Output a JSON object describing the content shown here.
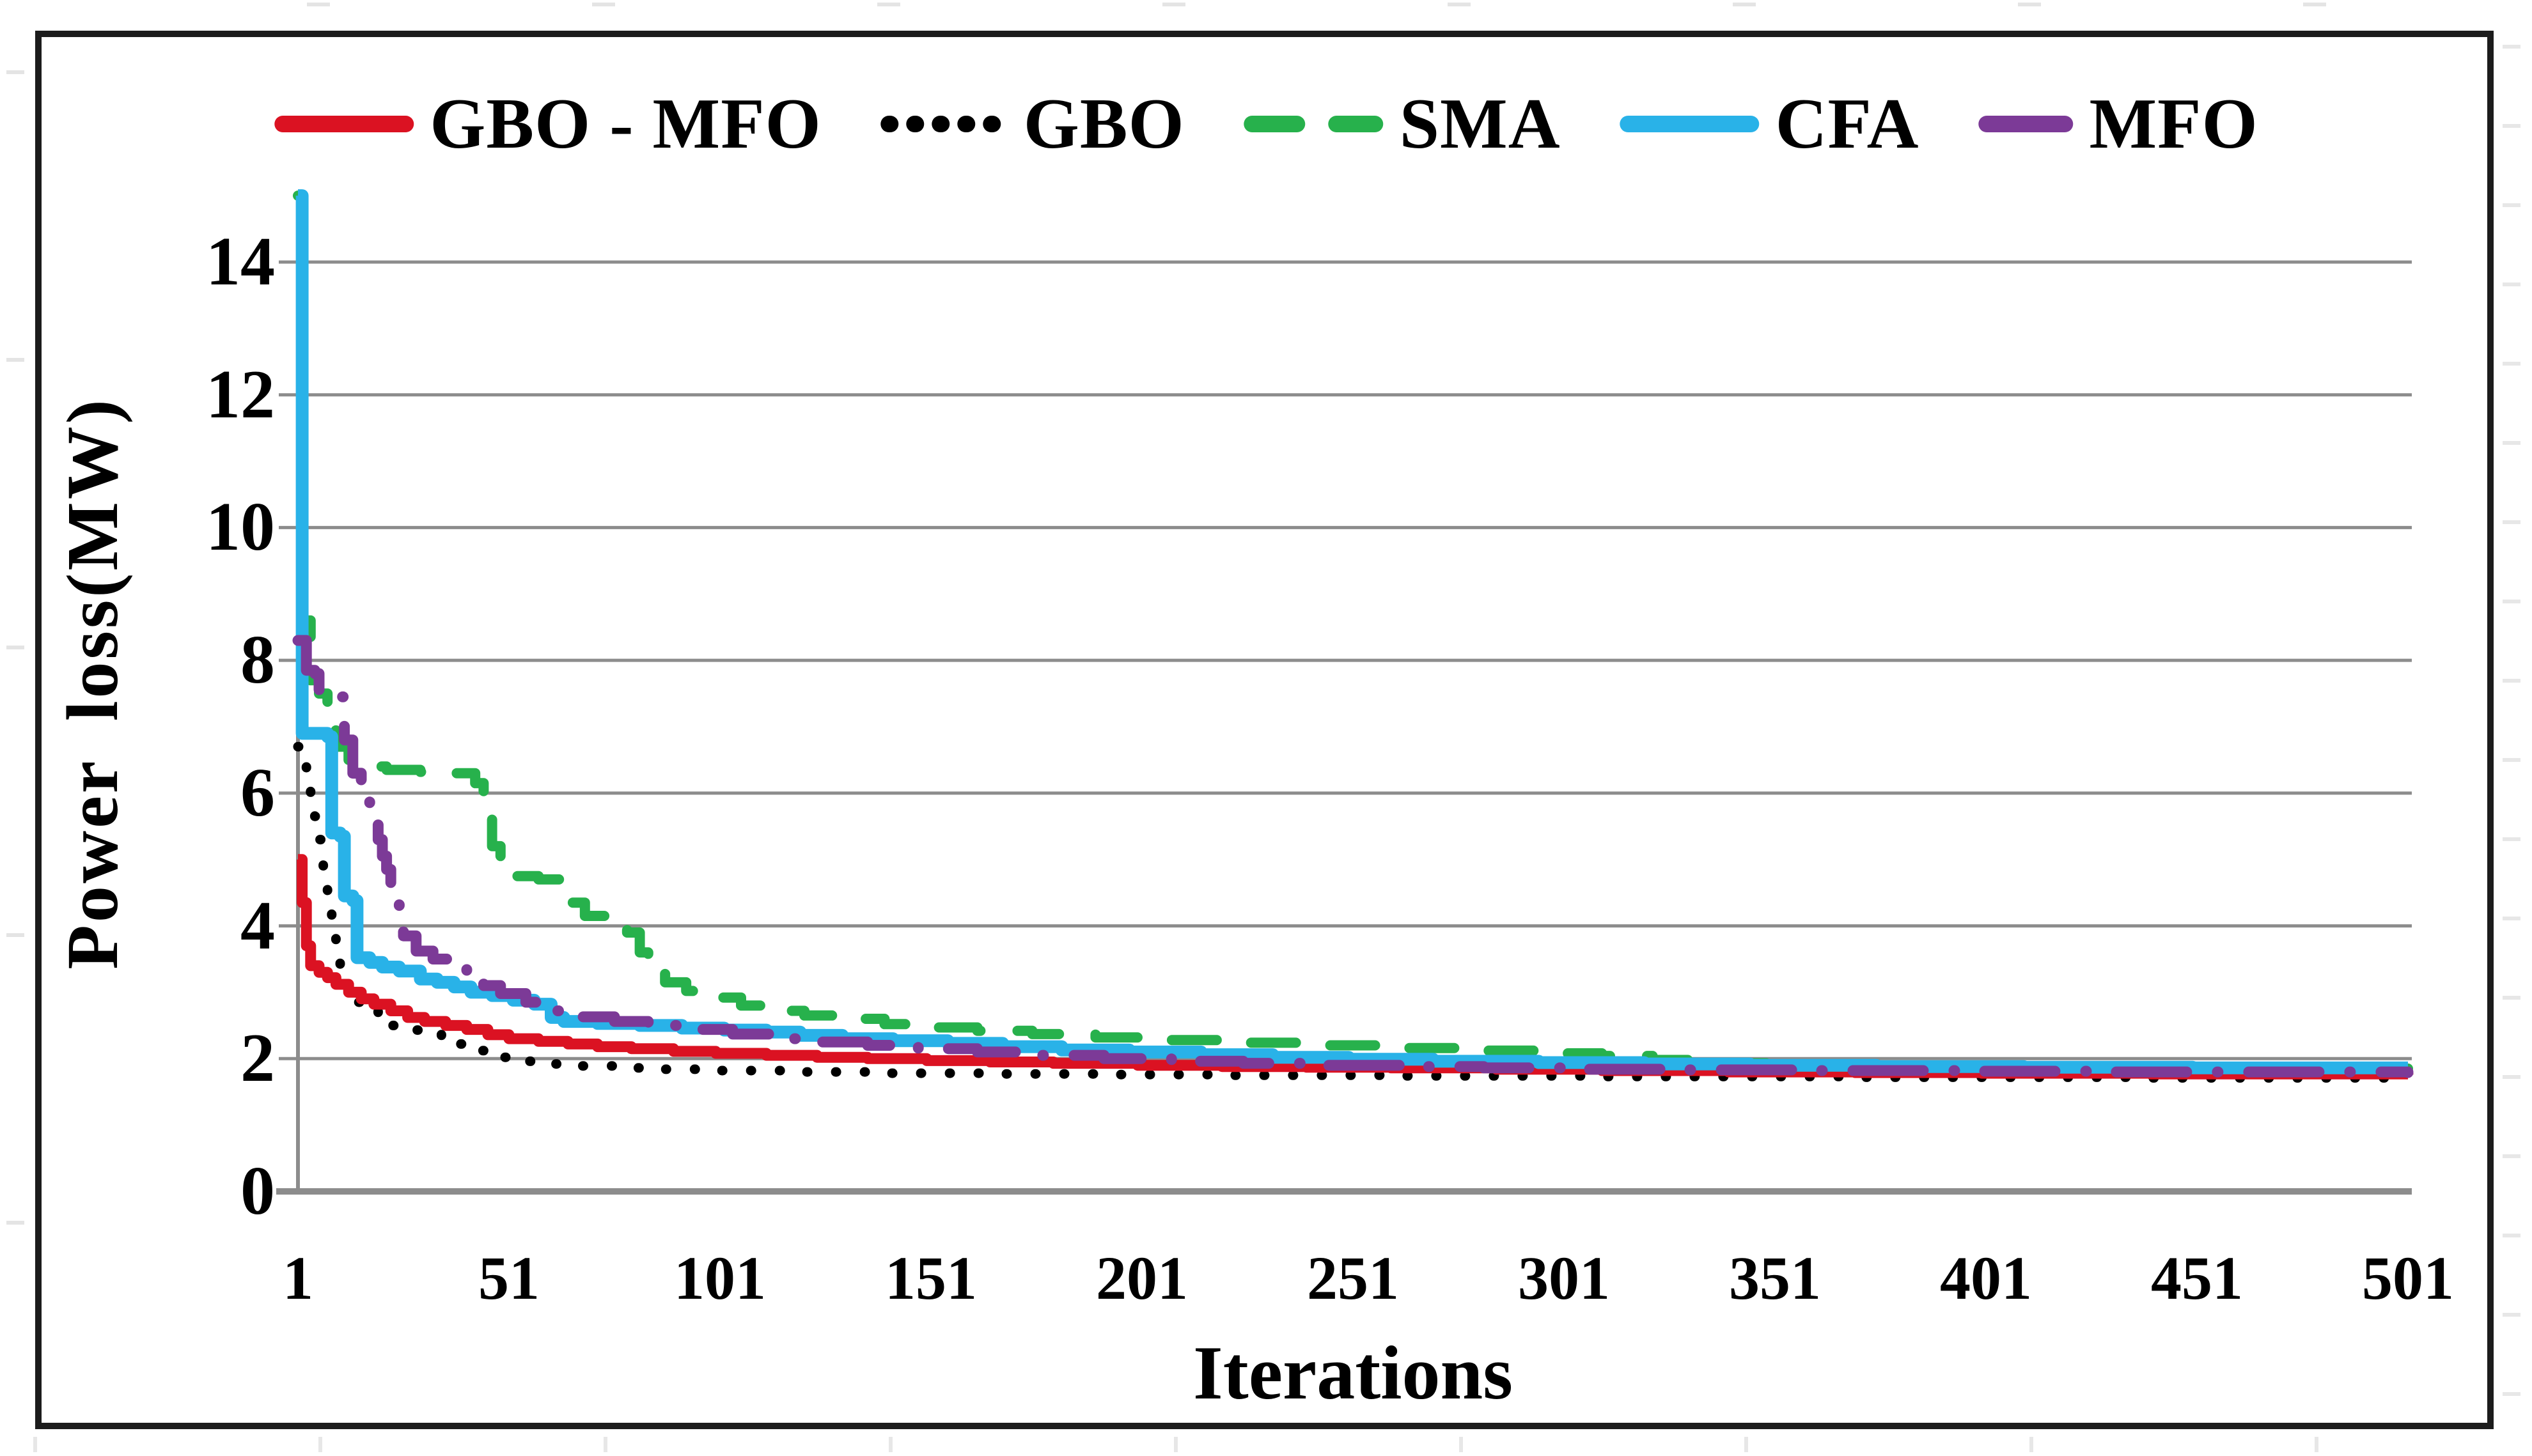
{
  "figure": {
    "border_color": "#1c1c1c",
    "background": "#ffffff",
    "grid_color": "#8c8c8c",
    "axis_color": "#8c8c8c",
    "text_color": "#000000"
  },
  "chart_data": {
    "type": "line",
    "title": "",
    "xlabel": "Iterations",
    "ylabel": "Power loss(MW)",
    "x_range": [
      1,
      501
    ],
    "ylim": [
      0,
      15.1
    ],
    "xticks": [
      1,
      51,
      101,
      151,
      201,
      251,
      301,
      351,
      401,
      451,
      501
    ],
    "yticks": [
      0,
      2,
      4,
      6,
      8,
      10,
      12,
      14
    ],
    "grid": "horizontal",
    "legend_position": "top-center",
    "series": [
      {
        "name": "GBO - MFO",
        "color": "#db1222",
        "style": "solid",
        "width": 17,
        "z": 2,
        "points": [
          [
            1,
            5.0
          ],
          [
            2,
            4.35
          ],
          [
            3,
            3.7
          ],
          [
            4,
            3.4
          ],
          [
            6,
            3.3
          ],
          [
            8,
            3.22
          ],
          [
            10,
            3.12
          ],
          [
            13,
            3.0
          ],
          [
            16,
            2.9
          ],
          [
            19,
            2.82
          ],
          [
            23,
            2.72
          ],
          [
            27,
            2.62
          ],
          [
            31,
            2.56
          ],
          [
            36,
            2.5
          ],
          [
            41,
            2.44
          ],
          [
            46,
            2.36
          ],
          [
            51,
            2.3
          ],
          [
            58,
            2.26
          ],
          [
            65,
            2.22
          ],
          [
            72,
            2.18
          ],
          [
            80,
            2.15
          ],
          [
            90,
            2.11
          ],
          [
            100,
            2.08
          ],
          [
            112,
            2.05
          ],
          [
            124,
            2.02
          ],
          [
            136,
            2.0
          ],
          [
            150,
            1.97
          ],
          [
            165,
            1.95
          ],
          [
            180,
            1.93
          ],
          [
            200,
            1.9
          ],
          [
            220,
            1.88
          ],
          [
            240,
            1.87
          ],
          [
            260,
            1.86
          ],
          [
            285,
            1.84
          ],
          [
            310,
            1.82
          ],
          [
            340,
            1.8
          ],
          [
            370,
            1.79
          ],
          [
            400,
            1.78
          ],
          [
            440,
            1.77
          ],
          [
            501,
            1.76
          ]
        ]
      },
      {
        "name": "GBO",
        "color": "#000000",
        "style": "dotted",
        "width": 15,
        "z": 1,
        "points": [
          [
            1,
            6.7
          ],
          [
            2,
            6.45
          ],
          [
            3,
            6.2
          ],
          [
            4,
            5.95
          ],
          [
            5,
            5.65
          ],
          [
            6,
            5.3
          ],
          [
            7,
            4.9
          ],
          [
            8,
            4.5
          ],
          [
            9,
            4.1
          ],
          [
            10,
            3.7
          ],
          [
            11,
            3.35
          ],
          [
            12,
            3.1
          ],
          [
            13,
            2.98
          ],
          [
            15,
            2.85
          ],
          [
            17,
            2.72
          ],
          [
            20,
            2.6
          ],
          [
            23,
            2.5
          ],
          [
            27,
            2.43
          ],
          [
            31,
            2.37
          ],
          [
            35,
            2.3
          ],
          [
            39,
            2.22
          ],
          [
            43,
            2.12
          ],
          [
            47,
            2.02
          ],
          [
            51,
            1.96
          ],
          [
            58,
            1.92
          ],
          [
            66,
            1.89
          ],
          [
            76,
            1.86
          ],
          [
            88,
            1.84
          ],
          [
            100,
            1.82
          ],
          [
            120,
            1.8
          ],
          [
            140,
            1.78
          ],
          [
            165,
            1.77
          ],
          [
            190,
            1.76
          ],
          [
            220,
            1.75
          ],
          [
            260,
            1.74
          ],
          [
            310,
            1.73
          ],
          [
            370,
            1.72
          ],
          [
            440,
            1.71
          ],
          [
            501,
            1.71
          ]
        ]
      },
      {
        "name": "SMA",
        "color": "#27b14c",
        "style": "dashed",
        "width": 16,
        "z": 3,
        "points": [
          [
            1,
            15.0
          ],
          [
            2,
            8.6
          ],
          [
            4,
            7.7
          ],
          [
            6,
            7.5
          ],
          [
            8,
            7.2
          ],
          [
            10,
            6.7
          ],
          [
            13,
            6.5
          ],
          [
            17,
            6.4
          ],
          [
            22,
            6.35
          ],
          [
            30,
            6.32
          ],
          [
            38,
            6.3
          ],
          [
            43,
            6.15
          ],
          [
            45,
            5.95
          ],
          [
            46,
            5.6
          ],
          [
            47,
            5.2
          ],
          [
            49,
            4.85
          ],
          [
            52,
            4.75
          ],
          [
            58,
            4.7
          ],
          [
            64,
            4.6
          ],
          [
            66,
            4.35
          ],
          [
            69,
            4.15
          ],
          [
            74,
            4.05
          ],
          [
            79,
            3.9
          ],
          [
            82,
            3.6
          ],
          [
            84,
            3.3
          ],
          [
            88,
            3.15
          ],
          [
            93,
            3.02
          ],
          [
            99,
            2.92
          ],
          [
            106,
            2.8
          ],
          [
            113,
            2.72
          ],
          [
            121,
            2.65
          ],
          [
            130,
            2.6
          ],
          [
            140,
            2.52
          ],
          [
            150,
            2.47
          ],
          [
            162,
            2.42
          ],
          [
            175,
            2.37
          ],
          [
            190,
            2.32
          ],
          [
            205,
            2.28
          ],
          [
            222,
            2.24
          ],
          [
            240,
            2.2
          ],
          [
            258,
            2.16
          ],
          [
            276,
            2.12
          ],
          [
            295,
            2.08
          ],
          [
            310,
            2.04
          ],
          [
            322,
            1.98
          ],
          [
            335,
            1.93
          ],
          [
            350,
            1.9
          ],
          [
            368,
            1.88
          ],
          [
            390,
            1.87
          ],
          [
            420,
            1.86
          ],
          [
            460,
            1.85
          ],
          [
            501,
            1.85
          ]
        ]
      },
      {
        "name": "CFA",
        "color": "#29b2e8",
        "style": "solid",
        "width": 20,
        "z": 4,
        "points": [
          [
            1,
            15.0
          ],
          [
            2,
            6.9
          ],
          [
            8,
            6.85
          ],
          [
            9,
            5.4
          ],
          [
            11,
            5.35
          ],
          [
            12,
            4.45
          ],
          [
            14,
            4.38
          ],
          [
            15,
            3.52
          ],
          [
            18,
            3.45
          ],
          [
            21,
            3.38
          ],
          [
            25,
            3.32
          ],
          [
            30,
            3.2
          ],
          [
            34,
            3.15
          ],
          [
            38,
            3.08
          ],
          [
            42,
            3.0
          ],
          [
            47,
            2.95
          ],
          [
            52,
            2.88
          ],
          [
            57,
            2.82
          ],
          [
            61,
            2.62
          ],
          [
            64,
            2.56
          ],
          [
            72,
            2.53
          ],
          [
            82,
            2.5
          ],
          [
            92,
            2.46
          ],
          [
            102,
            2.43
          ],
          [
            112,
            2.4
          ],
          [
            120,
            2.35
          ],
          [
            130,
            2.3
          ],
          [
            142,
            2.27
          ],
          [
            155,
            2.23
          ],
          [
            168,
            2.18
          ],
          [
            182,
            2.13
          ],
          [
            198,
            2.1
          ],
          [
            215,
            2.06
          ],
          [
            232,
            2.02
          ],
          [
            250,
            1.99
          ],
          [
            270,
            1.96
          ],
          [
            295,
            1.94
          ],
          [
            320,
            1.92
          ],
          [
            345,
            1.9
          ],
          [
            375,
            1.88
          ],
          [
            410,
            1.87
          ],
          [
            450,
            1.86
          ],
          [
            501,
            1.86
          ]
        ]
      },
      {
        "name": "MFO",
        "color": "#7c3a97",
        "style": "dashdot",
        "width": 17,
        "z": 5,
        "points": [
          [
            1,
            8.3
          ],
          [
            3,
            7.85
          ],
          [
            5,
            7.8
          ],
          [
            6,
            7.5
          ],
          [
            10,
            7.45
          ],
          [
            12,
            6.8
          ],
          [
            14,
            6.3
          ],
          [
            16,
            5.9
          ],
          [
            18,
            5.6
          ],
          [
            20,
            5.3
          ],
          [
            21,
            5.05
          ],
          [
            22,
            4.85
          ],
          [
            23,
            4.65
          ],
          [
            24,
            4.5
          ],
          [
            25,
            4.1
          ],
          [
            26,
            3.85
          ],
          [
            29,
            3.62
          ],
          [
            33,
            3.5
          ],
          [
            37,
            3.38
          ],
          [
            41,
            3.25
          ],
          [
            45,
            3.1
          ],
          [
            49,
            2.98
          ],
          [
            55,
            2.85
          ],
          [
            61,
            2.72
          ],
          [
            68,
            2.63
          ],
          [
            76,
            2.56
          ],
          [
            84,
            2.5
          ],
          [
            94,
            2.44
          ],
          [
            104,
            2.37
          ],
          [
            114,
            2.3
          ],
          [
            124,
            2.25
          ],
          [
            136,
            2.2
          ],
          [
            148,
            2.15
          ],
          [
            162,
            2.1
          ],
          [
            176,
            2.05
          ],
          [
            192,
            2.0
          ],
          [
            208,
            1.96
          ],
          [
            225,
            1.93
          ],
          [
            243,
            1.9
          ],
          [
            262,
            1.88
          ],
          [
            282,
            1.86
          ],
          [
            305,
            1.84
          ],
          [
            330,
            1.83
          ],
          [
            360,
            1.82
          ],
          [
            395,
            1.81
          ],
          [
            430,
            1.8
          ],
          [
            470,
            1.8
          ],
          [
            501,
            1.79
          ]
        ]
      }
    ]
  }
}
